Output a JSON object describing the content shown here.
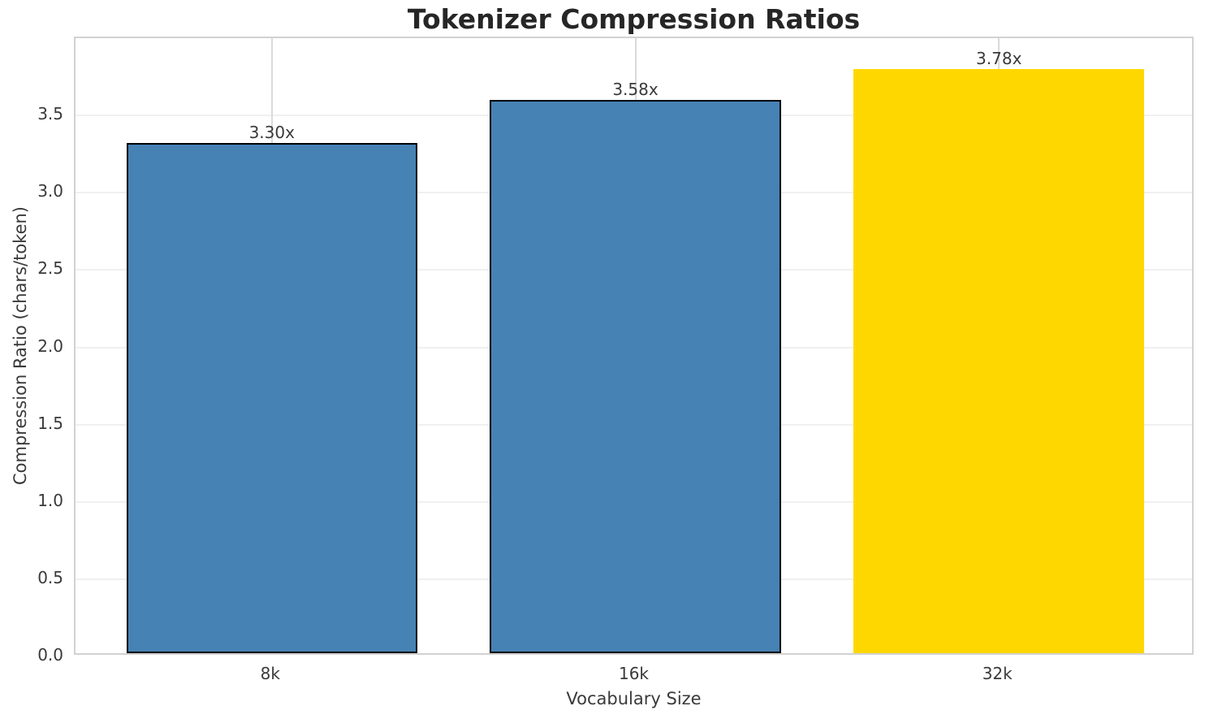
{
  "title": "Tokenizer Compression Ratios",
  "chart_data": {
    "type": "bar",
    "title": "Tokenizer Compression Ratios",
    "xlabel": "Vocabulary Size",
    "ylabel": "Compression Ratio (chars/token)",
    "categories": [
      "8k",
      "16k",
      "32k"
    ],
    "values": [
      3.3,
      3.58,
      3.78
    ],
    "bar_labels": [
      "3.30x",
      "3.58x",
      "3.78x"
    ],
    "bar_colors": [
      "#4682B4",
      "#4682B4",
      "#FFD700"
    ],
    "bar_edge_colors": [
      "#000000",
      "#000000",
      "none"
    ],
    "ylim": [
      0,
      4.0
    ],
    "yticks": [
      0.0,
      0.5,
      1.0,
      1.5,
      2.0,
      2.5,
      3.0,
      3.5
    ],
    "ytick_labels": [
      "0.0",
      "0.5",
      "1.0",
      "1.5",
      "2.0",
      "2.5",
      "3.0",
      "3.5"
    ],
    "grid": true,
    "legend_position": "none"
  },
  "colors": {
    "accent_blue": "#4682B4",
    "accent_gold": "#FFD700",
    "grid_horizontal": "#f0f0f0",
    "grid_vertical": "#dadada",
    "spine": "#d2d2d2",
    "title_text": "#262626",
    "tick_text": "#3a3a3a"
  }
}
